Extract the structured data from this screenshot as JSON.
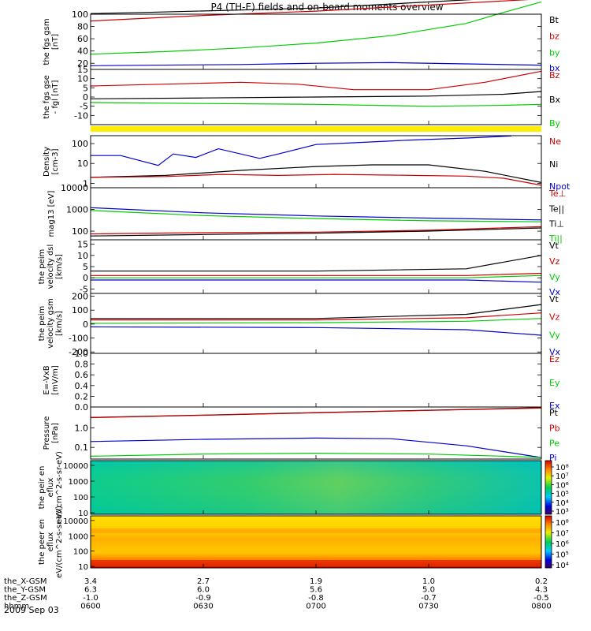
{
  "title": "P4 (TH-E) fields and on-board moments overview",
  "date": "2009 Sep 03",
  "colors": {
    "black": "#000000",
    "red": "#cc0000",
    "green": "#00cc00",
    "blue": "#0000cc",
    "yellow": "#ffee00"
  },
  "x_axis": {
    "rows": [
      {
        "label": "the_X-GSM",
        "values": [
          "3.4",
          "2.7",
          "1.9",
          "1.0",
          "0.2"
        ]
      },
      {
        "label": "the_Y-GSM",
        "values": [
          "6.3",
          "6.0",
          "5.6",
          "5.0",
          "4.3"
        ]
      },
      {
        "label": "the_Z-GSM",
        "values": [
          "-1.0",
          "-0.9",
          "-0.8",
          "-0.7",
          "-0.5"
        ]
      },
      {
        "label": "hhmm",
        "values": [
          "0600",
          "0630",
          "0700",
          "0730",
          "0800"
        ]
      }
    ]
  },
  "chart_data": [
    {
      "type": "line",
      "ylabel": "the fgs gsm [nT]",
      "scale": "linear",
      "ylim": [
        10,
        100
      ],
      "yticks": [
        "100",
        "80",
        "60",
        "40",
        "20"
      ],
      "legend": [
        "Bt",
        "bz",
        "by",
        "bx"
      ],
      "series": [
        {
          "name": "Bt",
          "color": "black",
          "x": [
            0,
            15,
            60,
            120
          ],
          "y": [
            101,
            103,
            110,
            130
          ]
        },
        {
          "name": "bz",
          "color": "red",
          "x": [
            0,
            30,
            60,
            120
          ],
          "y": [
            89,
            98,
            105,
            125
          ]
        },
        {
          "name": "by",
          "color": "green",
          "x": [
            0,
            20,
            40,
            60,
            80,
            100,
            110,
            120
          ],
          "y": [
            35,
            39,
            45,
            53,
            65,
            85,
            103,
            120
          ]
        },
        {
          "name": "bx",
          "color": "blue",
          "x": [
            0,
            40,
            60,
            80,
            100,
            120
          ],
          "y": [
            16,
            18,
            20,
            21,
            19,
            17
          ]
        }
      ]
    },
    {
      "type": "line",
      "ylabel": "the fgs gse - fgl [nT]",
      "scale": "linear",
      "ylim": [
        -15,
        15
      ],
      "yticks": [
        "15",
        "10",
        "5",
        "0",
        "-5",
        "-10"
      ],
      "legend": [
        "Bz",
        "Bx",
        "By"
      ],
      "series": [
        {
          "name": "Bz",
          "color": "red",
          "x": [
            0,
            20,
            40,
            55,
            70,
            90,
            105,
            120
          ],
          "y": [
            6,
            7,
            8,
            7,
            4,
            4,
            8,
            14
          ]
        },
        {
          "name": "Bx",
          "color": "black",
          "x": [
            0,
            30,
            60,
            90,
            110,
            120
          ],
          "y": [
            -1,
            -0.5,
            0,
            0.5,
            1.5,
            3
          ]
        },
        {
          "name": "By",
          "color": "green",
          "x": [
            0,
            30,
            60,
            90,
            110,
            120
          ],
          "y": [
            -3,
            -3.5,
            -4,
            -5,
            -4.5,
            -4
          ]
        }
      ]
    },
    {
      "type": "line",
      "ylabel": "Density [cm-3]",
      "scale": "log",
      "ylim": [
        0.6,
        250
      ],
      "yticks": [
        "100",
        "10",
        "1"
      ],
      "legend": [
        "Ne",
        "Ni",
        "Npot"
      ],
      "series": [
        {
          "name": "Npot",
          "color": "blue",
          "x": [
            0,
            8,
            18,
            22,
            28,
            34,
            45,
            50,
            60,
            70,
            85,
            100,
            112
          ],
          "y": [
            25,
            25,
            8,
            30,
            20,
            55,
            18,
            30,
            90,
            110,
            150,
            190,
            240
          ]
        },
        {
          "name": "Ni",
          "color": "black",
          "x": [
            0,
            20,
            40,
            60,
            75,
            90,
            105,
            120
          ],
          "y": [
            2,
            2.5,
            4.5,
            7,
            8.5,
            8.5,
            4,
            1.1
          ]
        },
        {
          "name": "Ne",
          "color": "red",
          "x": [
            0,
            20,
            35,
            50,
            65,
            80,
            100,
            110,
            120
          ],
          "y": [
            2,
            2.2,
            2.8,
            2.5,
            2.8,
            2.6,
            2.3,
            1.8,
            0.8
          ]
        }
      ]
    },
    {
      "type": "line",
      "ylabel": "mag13 [eV]",
      "scale": "log",
      "ylim": [
        40,
        10000
      ],
      "yticks": [
        "10000",
        "1000",
        "100"
      ],
      "legend": [
        "Te⊥",
        "Te||",
        "Ti⊥",
        "Ti||"
      ],
      "series": [
        {
          "name": "Ti⊥",
          "color": "blue",
          "x": [
            0,
            30,
            60,
            90,
            120
          ],
          "y": [
            1200,
            700,
            500,
            400,
            330
          ]
        },
        {
          "name": "Ti||",
          "color": "green",
          "x": [
            0,
            30,
            60,
            90,
            120
          ],
          "y": [
            900,
            520,
            380,
            300,
            270
          ]
        },
        {
          "name": "Te⊥",
          "color": "red",
          "x": [
            0,
            30,
            60,
            90,
            120
          ],
          "y": [
            75,
            85,
            90,
            110,
            160
          ]
        },
        {
          "name": "Te||",
          "color": "black",
          "x": [
            0,
            30,
            60,
            90,
            120
          ],
          "y": [
            60,
            70,
            80,
            100,
            140
          ]
        }
      ]
    },
    {
      "type": "line",
      "ylabel": "the peim velocity dsl [km/s]",
      "scale": "linear",
      "ylim": [
        -7,
        17
      ],
      "yticks": [
        "15",
        "10",
        "5",
        "0",
        "-5"
      ],
      "legend": [
        "Vt",
        "Vz",
        "Vy",
        "Vx"
      ],
      "series": [
        {
          "name": "Vt",
          "color": "black",
          "x": [
            0,
            60,
            100,
            120
          ],
          "y": [
            3,
            3,
            4,
            10
          ]
        },
        {
          "name": "Vz",
          "color": "red",
          "x": [
            0,
            60,
            100,
            120
          ],
          "y": [
            1,
            1,
            1,
            2
          ]
        },
        {
          "name": "Vy",
          "color": "green",
          "x": [
            0,
            60,
            100,
            120
          ],
          "y": [
            0,
            0,
            0,
            1
          ]
        },
        {
          "name": "Vx",
          "color": "blue",
          "x": [
            0,
            60,
            100,
            120
          ],
          "y": [
            -1,
            -1,
            -1,
            -2
          ]
        }
      ]
    },
    {
      "type": "line",
      "ylabel": "the peim velocity gsm [km/s]",
      "scale": "linear",
      "ylim": [
        -210,
        220
      ],
      "yticks": [
        "200",
        "100",
        "0",
        "-100",
        "-200"
      ],
      "legend": [
        "Vt",
        "Vz",
        "Vy",
        "Vx"
      ],
      "series": [
        {
          "name": "Vt",
          "color": "black",
          "x": [
            0,
            60,
            100,
            120
          ],
          "y": [
            40,
            40,
            70,
            140
          ]
        },
        {
          "name": "Vz",
          "color": "red",
          "x": [
            0,
            60,
            100,
            120
          ],
          "y": [
            30,
            30,
            45,
            80
          ]
        },
        {
          "name": "Vy",
          "color": "green",
          "x": [
            0,
            60,
            100,
            120
          ],
          "y": [
            5,
            10,
            20,
            40
          ]
        },
        {
          "name": "Vx",
          "color": "blue",
          "x": [
            0,
            60,
            100,
            120
          ],
          "y": [
            -20,
            -25,
            -40,
            -80
          ]
        }
      ]
    },
    {
      "type": "line",
      "ylabel": "E=-VxB [mV/m]",
      "scale": "linear",
      "ylim": [
        0,
        1
      ],
      "yticks": [
        "1.0",
        "0.8",
        "0.6",
        "0.4",
        "0.2",
        "0.0"
      ],
      "legend": [
        "Ez",
        "Ey",
        "Ex"
      ],
      "series": []
    },
    {
      "type": "line",
      "ylabel": "Pressure [nPa]",
      "scale": "log",
      "ylim": [
        0.025,
        12
      ],
      "yticks": [
        "1.0",
        "0.1"
      ],
      "legend": [
        "Pt",
        "Pb",
        "Pe",
        "Pi"
      ],
      "series": [
        {
          "name": "Pt",
          "color": "black",
          "x": [
            0,
            30,
            60,
            90,
            120
          ],
          "y": [
            3.5,
            4.6,
            6.2,
            8.2,
            11
          ]
        },
        {
          "name": "Pb",
          "color": "red",
          "x": [
            0,
            30,
            60,
            90,
            120
          ],
          "y": [
            3.4,
            4.5,
            6,
            8,
            10.5
          ]
        },
        {
          "name": "Pi",
          "color": "blue",
          "x": [
            0,
            30,
            60,
            80,
            100,
            110,
            120
          ],
          "y": [
            0.2,
            0.26,
            0.3,
            0.28,
            0.12,
            0.06,
            0.03
          ]
        },
        {
          "name": "Pe",
          "color": "green",
          "x": [
            0,
            30,
            60,
            90,
            110,
            120
          ],
          "y": [
            0.035,
            0.045,
            0.05,
            0.045,
            0.035,
            0.03
          ]
        }
      ]
    },
    {
      "type": "heatmap",
      "ylabel": "the peir en eflux eV/(cm^2-s-sr-eV)",
      "yticks": [
        "10000",
        "1000",
        "100",
        "10"
      ],
      "colorbar": [
        "10⁸",
        "10⁷",
        "10⁶",
        "10⁵",
        "10⁴",
        "10³"
      ]
    },
    {
      "type": "heatmap",
      "ylabel": "the peer en eflux eV/(cm^2-s-sr-eV)",
      "yticks": [
        "10000",
        "1000",
        "100",
        "10"
      ],
      "colorbar": [
        "10⁸",
        "10⁷",
        "10⁶",
        "10⁵",
        "10⁴"
      ]
    }
  ]
}
